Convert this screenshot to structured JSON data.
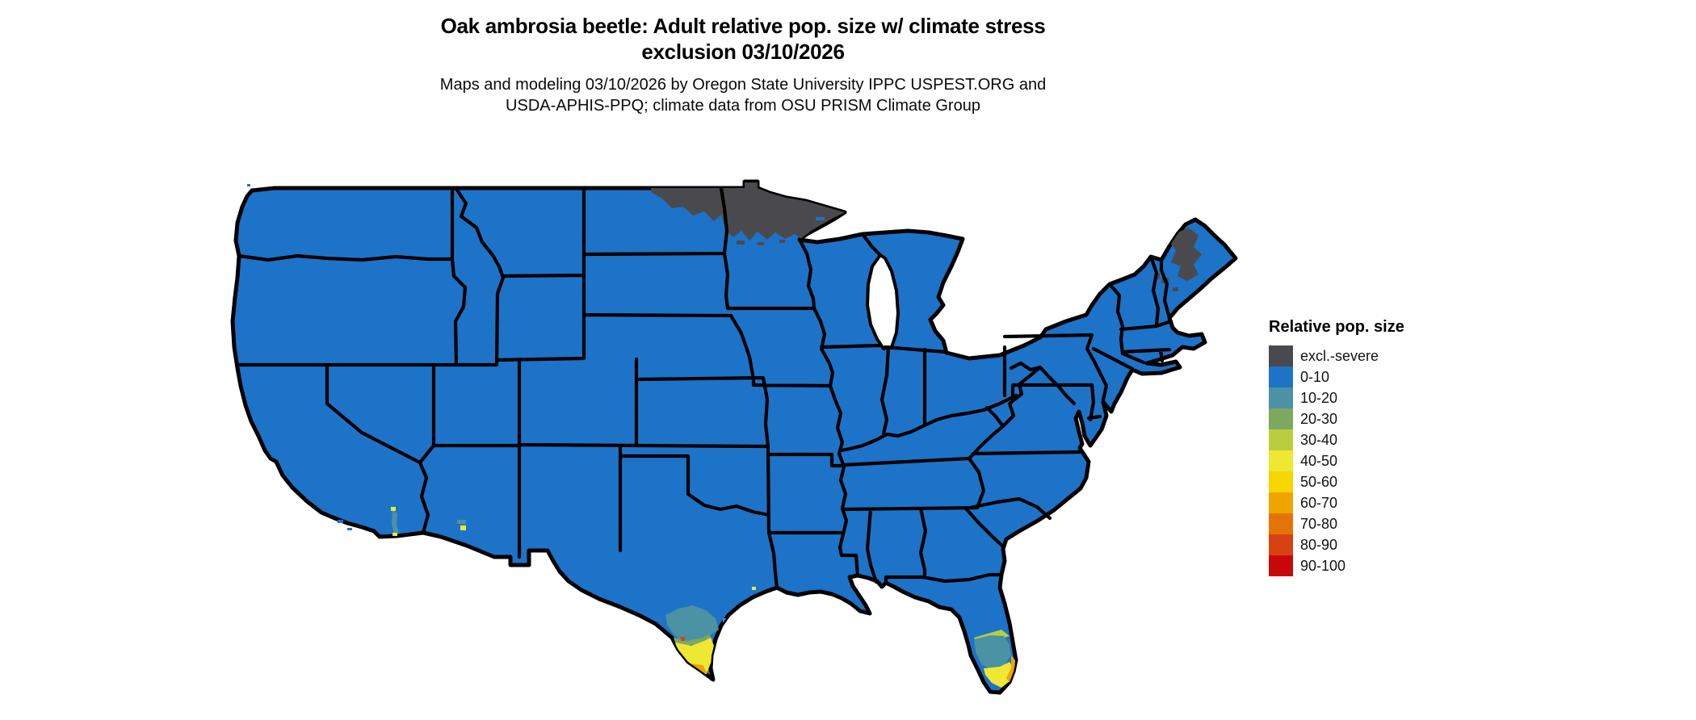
{
  "title": {
    "line1": "Oak ambrosia beetle: Adult relative pop. size w/ climate stress",
    "line2": "exclusion 03/10/2026"
  },
  "subtitle": {
    "line1": "Maps and modeling 03/10/2026 by Oregon State University IPPC USPEST.ORG and",
    "line2": "USDA-APHIS-PPQ; climate data from OSU PRISM Climate Group"
  },
  "legend": {
    "title": "Relative pop. size",
    "items": [
      {
        "label": "excl.-severe",
        "key": "excl"
      },
      {
        "label": "0-10",
        "key": "c0"
      },
      {
        "label": "10-20",
        "key": "c10"
      },
      {
        "label": "20-30",
        "key": "c20"
      },
      {
        "label": "30-40",
        "key": "c30"
      },
      {
        "label": "40-50",
        "key": "c40"
      },
      {
        "label": "50-60",
        "key": "c50"
      },
      {
        "label": "60-70",
        "key": "c60"
      },
      {
        "label": "70-80",
        "key": "c70"
      },
      {
        "label": "80-90",
        "key": "c80"
      },
      {
        "label": "90-100",
        "key": "c90"
      }
    ]
  },
  "colors": {
    "excl": "#4a4a4e",
    "c0": "#1d73c8",
    "c10": "#4a92a4",
    "c20": "#7ca860",
    "c30": "#b9ce3c",
    "c40": "#eee832",
    "c50": "#f6d500",
    "c60": "#f0a400",
    "c70": "#e57408",
    "c80": "#d74214",
    "c90": "#c80808",
    "border": "#000000",
    "background": "#ffffff"
  },
  "map": {
    "kind": "choropleth of contiguous United States",
    "regions": [
      {
        "area": "most of the contiguous US",
        "class": "0-10"
      },
      {
        "area": "northern Minnesota and northeastern North Dakota",
        "class": "excl.-severe"
      },
      {
        "area": "interior/northern Maine",
        "class": "excl.-severe"
      },
      {
        "area": "southern Texas (Rio Grande Valley)",
        "class": "10-80 gradient with small 80-100 spots"
      },
      {
        "area": "southern Florida and the Keys",
        "class": "10-80 gradient"
      },
      {
        "area": "small spots in southeastern California and central Arizona",
        "class": "10-50"
      }
    ]
  }
}
